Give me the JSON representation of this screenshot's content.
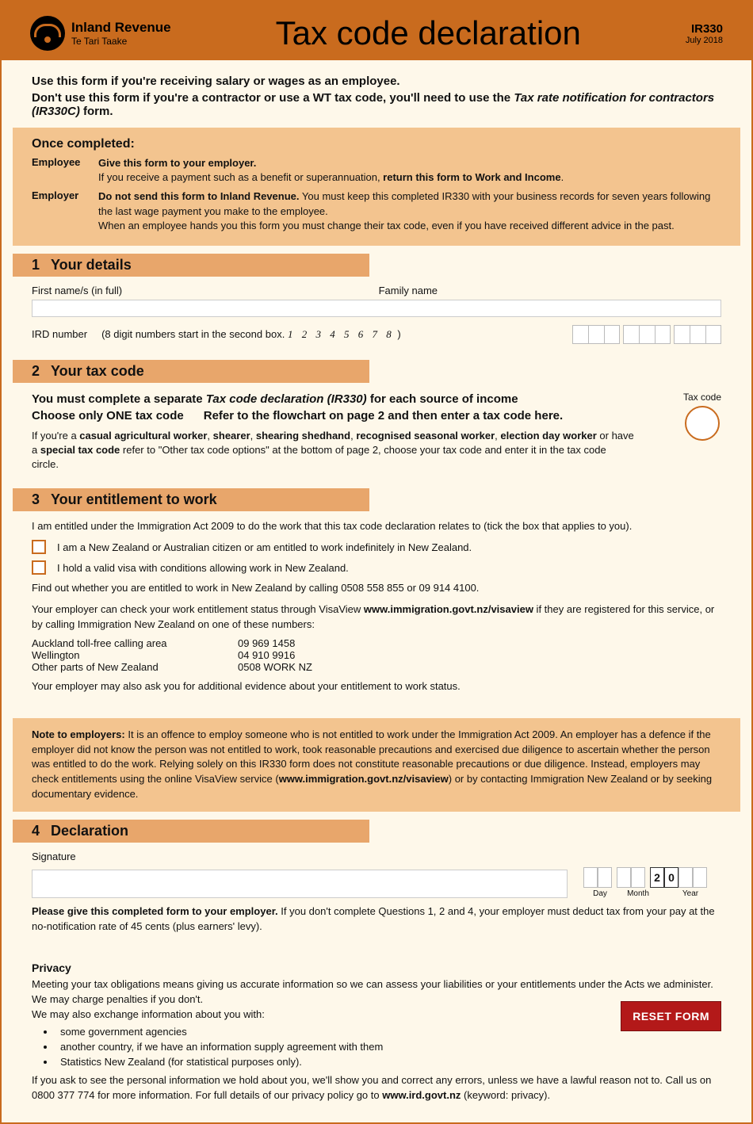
{
  "header": {
    "org_main": "Inland Revenue",
    "org_sub": "Te Tari Taake",
    "title": "Tax code declaration",
    "form_id": "IR330",
    "form_date": "July 2018"
  },
  "intro": {
    "line1": "Use this form if you're receiving salary or wages as an employee.",
    "line2a": "Don't use this form if you're a contractor or use a WT tax code, you'll need to use the ",
    "line2b": "Tax rate notification for contractors (IR330C)",
    "line2c": " form."
  },
  "instructions": {
    "title": "Once completed:",
    "employee_label": "Employee",
    "employee_text1": "Give this form to your employer.",
    "employee_text2a": "If you receive a payment such as a benefit or superannuation, ",
    "employee_text2b": "return this form to Work and Income",
    "employee_text2c": ".",
    "employer_label": "Employer",
    "employer_text1a": "Do not send this form to Inland Revenue.",
    "employer_text1b": " You must keep this completed IR330 with your business records for seven years following the last wage payment you make to the employee.",
    "employer_text2": "When an employee hands you this form you must change their tax code, even if you have received different advice in the past."
  },
  "section1": {
    "num": "1",
    "title": "Your details",
    "first_name_label": "First name/s (in full)",
    "family_name_label": "Family name",
    "ird_label": "IRD number",
    "ird_hint": "(8 digit numbers start in the second box.",
    "ird_example": "1 2 3 4 5 6 7 8",
    "ird_hint_close": ")"
  },
  "section2": {
    "num": "2",
    "title": "Your tax code",
    "para1a": "You must complete a separate ",
    "para1b": "Tax code declaration (IR330)",
    "para1c": " for each source of income",
    "para2a": "Choose only ONE tax code",
    "para2b": "Refer to the flowchart on page 2 and then enter a tax code here.",
    "para3a": "If you're a ",
    "para3b": "casual agricultural worker",
    "para3c": ", ",
    "para3d": "shearer",
    "para3e": ", ",
    "para3f": "shearing shedhand",
    "para3g": ", ",
    "para3h": "recognised seasonal worker",
    "para3i": ", ",
    "para3j": "election day worker",
    "para3k": " or have a ",
    "para3l": "special tax code",
    "para3m": " refer to \"Other tax code options\" at the bottom of page 2, choose your tax code and enter it in the tax code circle.",
    "tax_code_label": "Tax code"
  },
  "section3": {
    "num": "3",
    "title": "Your entitlement to work",
    "intro": "I am entitled under the Immigration Act 2009 to do the work that this tax code declaration relates to (tick the box that applies to you).",
    "check1": "I am a New Zealand or Australian citizen or am entitled to work indefinitely in New Zealand.",
    "check2": "I hold a valid visa with conditions allowing work in New Zealand.",
    "findout": "Find out whether you are entitled to work in New Zealand by calling 0508 558 855 or 09 914 4100.",
    "employer_check_a": "Your employer can check your work entitlement status through VisaView ",
    "employer_check_b": "www.immigration.govt.nz/visaview",
    "employer_check_c": " if they are registered for this service, or by calling Immigration New Zealand on one of these numbers:",
    "phone1_label": "Auckland toll-free calling area",
    "phone1_num": "09 969 1458",
    "phone2_label": "Wellington",
    "phone2_num": "04 910 9916",
    "phone3_label": "Other parts of New Zealand",
    "phone3_num": "0508 WORK NZ",
    "ask_evidence": "Your employer may also ask you for additional evidence about your entitlement to work status.",
    "note_label": "Note to employers:",
    "note_text_a": " It is an offence to employ someone who is not entitled to work under the Immigration Act 2009. An employer has a defence if the employer did not know the person was not entitled to work, took reasonable precautions and exercised due diligence to ascertain whether the person was entitled to do the work. Relying solely on this IR330 form does not constitute reasonable precautions or due diligence. Instead, employers may check entitlements using the online VisaView service (",
    "note_text_b": "www.immigration.govt.nz/visaview",
    "note_text_c": ") or by contacting Immigration New Zealand or by seeking documentary evidence."
  },
  "section4": {
    "num": "4",
    "title": "Declaration",
    "signature_label": "Signature",
    "day_label": "Day",
    "month_label": "Month",
    "year_label": "Year",
    "year_prefill_1": "2",
    "year_prefill_2": "0",
    "please_give_a": "Please give this completed form to your employer.",
    "please_give_b": " If you don't complete Questions 1, 2 and 4, your employer must deduct tax from your pay at the no-notification rate of 45 cents (plus earners' levy)."
  },
  "privacy": {
    "title": "Privacy",
    "p1": "Meeting your tax obligations means giving us accurate information so we can assess your liabilities or your entitlements under the Acts we administer. We may charge penalties if you don't.",
    "p2": "We may also exchange information about you with:",
    "b1": "some government agencies",
    "b2": "another country, if we have an information supply agreement with them",
    "b3": "Statistics New Zealand (for statistical purposes only).",
    "p3": "If you ask to see the personal information we hold about you, we'll show you and correct any errors, unless we have a lawful reason not to. Call us on 0800 377 774 for more information. For full details of our privacy policy go to ",
    "p3b": "www.ird.govt.nz",
    "p3c": " (keyword: privacy)."
  },
  "reset_button": "RESET FORM",
  "colors": {
    "header_bg": "#c96b1e",
    "page_bg": "#fef8ea",
    "peach_box": "#f3c48f",
    "section_grad": "#e8a66b",
    "reset_bg": "#b31919"
  }
}
